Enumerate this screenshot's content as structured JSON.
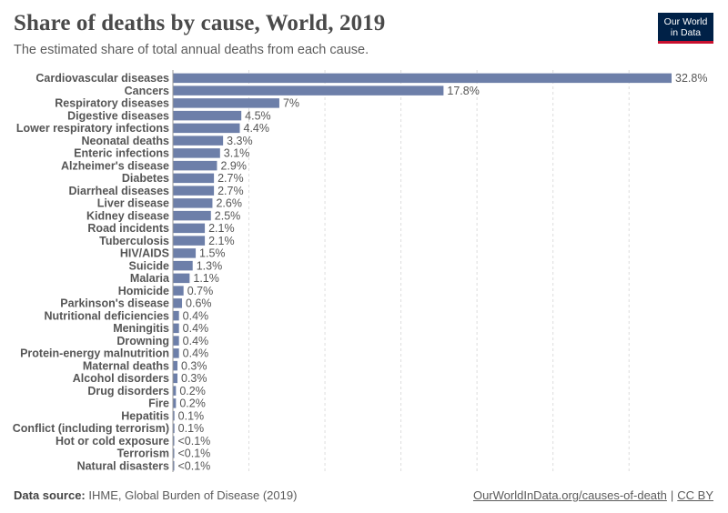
{
  "header": {
    "title": "Share of deaths by cause, World, 2019",
    "subtitle": "The estimated share of total annual deaths from each cause."
  },
  "logo": {
    "line1": "Our World",
    "line2": "in Data"
  },
  "footer": {
    "source_label": "Data source:",
    "source_text": "IHME, Global Burden of Disease (2019)",
    "link_text": "OurWorldInData.org/causes-of-death",
    "separator": "|",
    "license": "CC BY"
  },
  "colors": {
    "bar": "#6d7fa9",
    "grid": "#dddddd",
    "logo_bg": "#002147",
    "logo_accent": "#c8102e"
  },
  "chart_data": {
    "type": "bar",
    "orientation": "horizontal",
    "xlim": [
      0,
      32.8
    ],
    "grid": true,
    "unit": "%",
    "categories": [
      "Cardiovascular diseases",
      "Cancers",
      "Respiratory diseases",
      "Digestive diseases",
      "Lower respiratory infections",
      "Neonatal deaths",
      "Enteric infections",
      "Alzheimer's disease",
      "Diabetes",
      "Diarrheal diseases",
      "Liver disease",
      "Kidney disease",
      "Road incidents",
      "Tuberculosis",
      "HIV/AIDS",
      "Suicide",
      "Malaria",
      "Homicide",
      "Parkinson's disease",
      "Nutritional deficiencies",
      "Meningitis",
      "Drowning",
      "Protein-energy malnutrition",
      "Maternal deaths",
      "Alcohol disorders",
      "Drug disorders",
      "Fire",
      "Hepatitis",
      "Conflict (including terrorism)",
      "Hot or cold exposure",
      "Terrorism",
      "Natural disasters"
    ],
    "values": [
      32.8,
      17.8,
      7,
      4.5,
      4.4,
      3.3,
      3.1,
      2.9,
      2.7,
      2.7,
      2.6,
      2.5,
      2.1,
      2.1,
      1.5,
      1.3,
      1.1,
      0.7,
      0.6,
      0.4,
      0.4,
      0.4,
      0.4,
      0.3,
      0.3,
      0.2,
      0.2,
      0.1,
      0.1,
      0.05,
      0.04,
      0.03
    ],
    "labels": [
      "32.8%",
      "17.8%",
      "7%",
      "4.5%",
      "4.4%",
      "3.3%",
      "3.1%",
      "2.9%",
      "2.7%",
      "2.7%",
      "2.6%",
      "2.5%",
      "2.1%",
      "2.1%",
      "1.5%",
      "1.3%",
      "1.1%",
      "0.7%",
      "0.6%",
      "0.4%",
      "0.4%",
      "0.4%",
      "0.4%",
      "0.3%",
      "0.3%",
      "0.2%",
      "0.2%",
      "0.1%",
      "0.1%",
      "<0.1%",
      "<0.1%",
      "<0.1%"
    ]
  }
}
